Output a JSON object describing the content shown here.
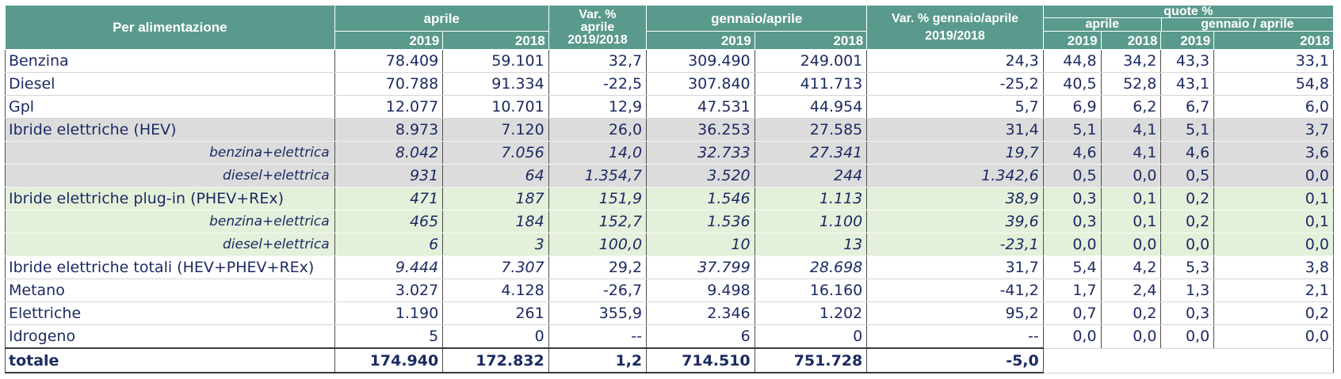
{
  "header": {
    "row_label": "Per alimentazione",
    "aprile": "aprile",
    "var_aprile": "Var. % aprile 2019/2018",
    "var_aprile_l1": "Var. %",
    "var_aprile_l2": "aprile",
    "var_aprile_l3": "2019/2018",
    "gennaio_aprile": "gennaio/aprile",
    "var_gen_apr_l1": "Var. % gennaio/aprile",
    "var_gen_apr_l2": "2019/2018",
    "quote": "quote %",
    "quote_aprile": "aprile",
    "quote_gen_apr": "gennaio / aprile",
    "y2019": "2019",
    "y2018": "2018"
  },
  "rows": [
    {
      "label": "Benzina",
      "apr19": "78.409",
      "apr18": "59.101",
      "var_apr": "32,7",
      "ga19": "309.490",
      "ga18": "249.001",
      "var_ga": "24,3",
      "q_apr19": "44,8",
      "q_apr18": "34,2",
      "q_ga19": "43,3",
      "q_ga18": "33,1"
    },
    {
      "label": "Diesel",
      "apr19": "70.788",
      "apr18": "91.334",
      "var_apr": "-22,5",
      "ga19": "307.840",
      "ga18": "411.713",
      "var_ga": "-25,2",
      "q_apr19": "40,5",
      "q_apr18": "52,8",
      "q_ga19": "43,1",
      "q_ga18": "54,8"
    },
    {
      "label": "Gpl",
      "apr19": "12.077",
      "apr18": "10.701",
      "var_apr": "12,9",
      "ga19": "47.531",
      "ga18": "44.954",
      "var_ga": "5,7",
      "q_apr19": "6,9",
      "q_apr18": "6,2",
      "q_ga19": "6,7",
      "q_ga18": "6,0"
    },
    {
      "label": "Ibride elettriche (HEV)",
      "apr19": "8.973",
      "apr18": "7.120",
      "var_apr": "26,0",
      "ga19": "36.253",
      "ga18": "27.585",
      "var_ga": "31,4",
      "q_apr19": "5,1",
      "q_apr18": "4,1",
      "q_ga19": "5,1",
      "q_ga18": "3,7"
    },
    {
      "label": "benzina+elettrica",
      "apr19": "8.042",
      "apr18": "7.056",
      "var_apr": "14,0",
      "ga19": "32.733",
      "ga18": "27.341",
      "var_ga": "19,7",
      "q_apr19": "4,6",
      "q_apr18": "4,1",
      "q_ga19": "4,6",
      "q_ga18": "3,6"
    },
    {
      "label": "diesel+elettrica",
      "apr19": "931",
      "apr18": "64",
      "var_apr": "1.354,7",
      "ga19": "3.520",
      "ga18": "244",
      "var_ga": "1.342,6",
      "q_apr19": "0,5",
      "q_apr18": "0,0",
      "q_ga19": "0,5",
      "q_ga18": "0,0"
    },
    {
      "label": "Ibride elettriche plug-in (PHEV+REx)",
      "apr19": "471",
      "apr18": "187",
      "var_apr": "151,9",
      "ga19": "1.546",
      "ga18": "1.113",
      "var_ga": "38,9",
      "q_apr19": "0,3",
      "q_apr18": "0,1",
      "q_ga19": "0,2",
      "q_ga18": "0,1"
    },
    {
      "label": "benzina+elettrica",
      "apr19": "465",
      "apr18": "184",
      "var_apr": "152,7",
      "ga19": "1.536",
      "ga18": "1.100",
      "var_ga": "39,6",
      "q_apr19": "0,3",
      "q_apr18": "0,1",
      "q_ga19": "0,2",
      "q_ga18": "0,1"
    },
    {
      "label": "diesel+elettrica",
      "apr19": "6",
      "apr18": "3",
      "var_apr": "100,0",
      "ga19": "10",
      "ga18": "13",
      "var_ga": "-23,1",
      "q_apr19": "0,0",
      "q_apr18": "0,0",
      "q_ga19": "0,0",
      "q_ga18": "0,0"
    },
    {
      "label": "Ibride elettriche totali (HEV+PHEV+REx)",
      "apr19": "9.444",
      "apr18": "7.307",
      "var_apr": "29,2",
      "ga19": "37.799",
      "ga18": "28.698",
      "var_ga": "31,7",
      "q_apr19": "5,4",
      "q_apr18": "4,2",
      "q_ga19": "5,3",
      "q_ga18": "3,8"
    },
    {
      "label": "Metano",
      "apr19": "3.027",
      "apr18": "4.128",
      "var_apr": "-26,7",
      "ga19": "9.498",
      "ga18": "16.160",
      "var_ga": "-41,2",
      "q_apr19": "1,7",
      "q_apr18": "2,4",
      "q_ga19": "1,3",
      "q_ga18": "2,1"
    },
    {
      "label": "Elettriche",
      "apr19": "1.190",
      "apr18": "261",
      "var_apr": "355,9",
      "ga19": "2.346",
      "ga18": "1.202",
      "var_ga": "95,2",
      "q_apr19": "0,7",
      "q_apr18": "0,2",
      "q_ga19": "0,3",
      "q_ga18": "0,2"
    },
    {
      "label": "Idrogeno",
      "apr19": "5",
      "apr18": "0",
      "var_apr": "--",
      "ga19": "6",
      "ga18": "0",
      "var_ga": "--",
      "q_apr19": "0,0",
      "q_apr18": "0,0",
      "q_ga19": "0,0",
      "q_ga18": "0,0"
    }
  ],
  "total": {
    "label": "totale",
    "apr19": "174.940",
    "apr18": "172.832",
    "var_apr": "1,2",
    "ga19": "714.510",
    "ga18": "751.728",
    "var_ga": "-5,0"
  },
  "colors": {
    "header_bg": "#5a9a8d",
    "hybrid_bg": "#dcdcdc",
    "plugin_bg": "#e4f0da",
    "text": "#1c2b63"
  }
}
